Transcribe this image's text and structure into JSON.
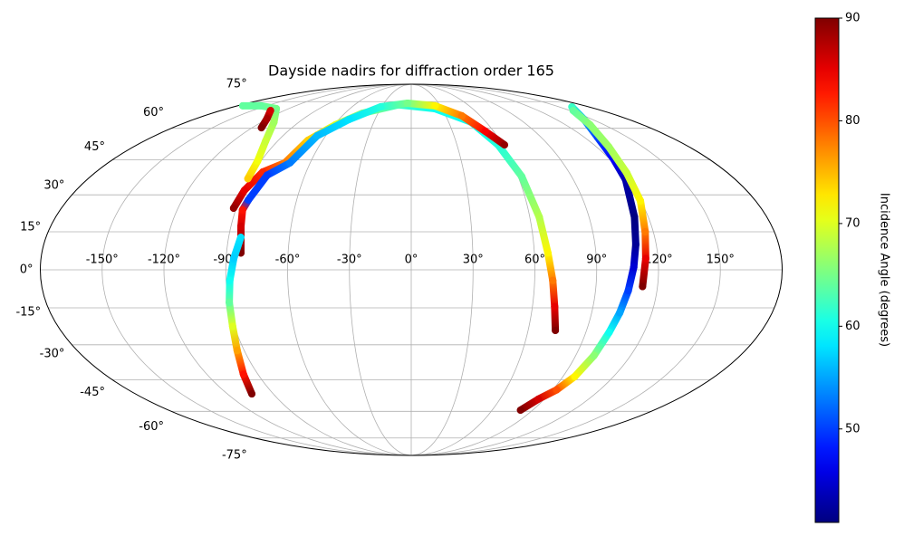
{
  "chart_data": {
    "type": "scatter",
    "projection": "mollweide",
    "title": "Dayside nadirs for diffraction order 165",
    "colorbar_label": "Incidence Angle (degrees)",
    "colormap": "jet",
    "clim": [
      40.9,
      90
    ],
    "cticks": [
      50,
      60,
      70,
      80,
      90
    ],
    "grid": true,
    "xlim": [
      -180,
      180
    ],
    "ylim": [
      -90,
      90
    ],
    "xticks": [
      {
        "value": -150,
        "label": "-150°"
      },
      {
        "value": -120,
        "label": "-120°"
      },
      {
        "value": -90,
        "label": "-90°"
      },
      {
        "value": -60,
        "label": "-60°"
      },
      {
        "value": -30,
        "label": "-30°"
      },
      {
        "value": 0,
        "label": "0°"
      },
      {
        "value": 30,
        "label": "30°"
      },
      {
        "value": 60,
        "label": "60°"
      },
      {
        "value": 90,
        "label": "90°"
      },
      {
        "value": 120,
        "label": "120°"
      },
      {
        "value": 150,
        "label": "150°"
      }
    ],
    "yticks": [
      {
        "value": -75,
        "label": "-75°"
      },
      {
        "value": -60,
        "label": "-60°"
      },
      {
        "value": -45,
        "label": "-45°"
      },
      {
        "value": -30,
        "label": "-30°"
      },
      {
        "value": -15,
        "label": "-15°"
      },
      {
        "value": 0,
        "label": "0°"
      },
      {
        "value": 15,
        "label": "15°"
      },
      {
        "value": 30,
        "label": "30°"
      },
      {
        "value": 45,
        "label": "45°"
      },
      {
        "value": 60,
        "label": "60°"
      },
      {
        "value": 75,
        "label": "75°"
      }
    ],
    "series": [
      {
        "lon": [
          -91.4,
          -89.6,
          -84.8,
          -75,
          -70,
          -59,
          -44,
          -13.5,
          23,
          48,
          57,
          62,
          64.8,
          66.6,
          68.8,
          71,
          74
        ],
        "lat": [
          24.5,
          31.9,
          39.7,
          43.7,
          54,
          61.8,
          68.1,
          73,
          70.7,
          63.2,
          51.9,
          37.8,
          20.9,
          6.6,
          -4.2,
          -14.5,
          -24.1
        ],
        "incidence": [
          89,
          85,
          82,
          78,
          74,
          70,
          66,
          62,
          60,
          60,
          61,
          64,
          68,
          72,
          78,
          85,
          90
        ]
      },
      {
        "lon": [
          -83,
          -85,
          -86.5,
          -85.3,
          -81.3,
          -72,
          -66,
          -51.6,
          -31,
          -4,
          24.7,
          44,
          54,
          61.2
        ],
        "lat": [
          6.6,
          17.2,
          23.8,
          27.9,
          38.3,
          43.7,
          56.3,
          64.6,
          71.8,
          74,
          72.4,
          66.6,
          58.5,
          51.9
        ],
        "incidence": [
          90,
          86,
          83,
          50,
          50,
          53,
          56,
          58,
          61,
          65,
          72,
          78,
          84,
          89
        ]
      },
      {
        "lon": [
          -174.7,
          -155.7,
          -132,
          -110,
          -98,
          -92,
          -91
        ],
        "lat": [
          72.4,
          72.4,
          70.7,
          63.2,
          53.6,
          44.5,
          36.8
        ],
        "incidence": [
          64,
          64,
          65,
          67,
          69,
          71,
          74
        ]
      },
      {
        "lon": [
          -133,
          -120.5,
          -113
        ],
        "lat": [
          69.6,
          65,
          60.3
        ],
        "incidence": [
          86,
          88,
          90
        ]
      },
      {
        "lon": [
          -84,
          -86.3,
          -88.2,
          -89.7,
          -91,
          -93.8,
          -98.5,
          -104
        ],
        "lat": [
          12.8,
          4.4,
          -4.2,
          -12.9,
          -22.5,
          -32.4,
          -42.6,
          -51.5
        ],
        "incidence": [
          58,
          57,
          60,
          64,
          70,
          76,
          83,
          90
        ]
      },
      {
        "lon": [
          163,
          143,
          129,
          122.5,
          119,
          113,
          110,
          108,
          106,
          104,
          102,
          100,
          97,
          92.5,
          86,
          81
        ],
        "lat": [
          71.8,
          64.6,
          55.4,
          45.7,
          36.4,
          20.9,
          10,
          1,
          -8.2,
          -17,
          -24.9,
          -34.5,
          -43.6,
          -49.6,
          -54,
          -59.4
        ],
        "incidence": [
          62,
          55,
          50,
          47,
          43,
          41,
          42,
          45,
          50,
          55,
          60,
          66,
          72,
          80,
          86,
          90
        ]
      },
      {
        "lon": [
          153,
          139,
          128,
          122.6,
          119.8,
          116,
          114,
          112.7
        ],
        "lat": [
          69.6,
          61.8,
          51,
          39.3,
          27.5,
          15,
          4.4,
          -6.6
        ],
        "incidence": [
          64,
          66,
          67,
          69,
          72,
          78,
          85,
          90
        ]
      }
    ]
  }
}
